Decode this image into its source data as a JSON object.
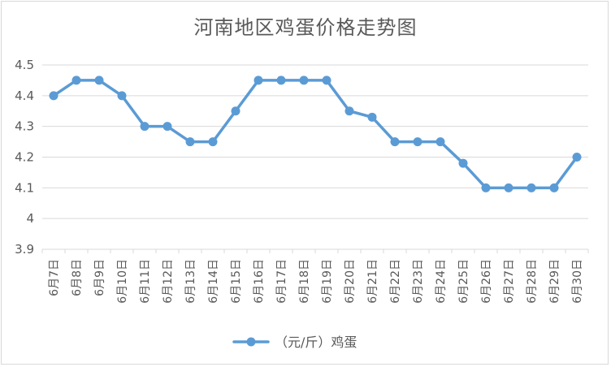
{
  "chart_data": {
    "type": "line",
    "title": "河南地区鸡蛋价格走势图",
    "categories": [
      "6月7日",
      "6月8日",
      "6月9日",
      "6月10日",
      "6月11日",
      "6月12日",
      "6月13日",
      "6月14日",
      "6月15日",
      "6月16日",
      "6月17日",
      "6月18日",
      "6月19日",
      "6月20日",
      "6月21日",
      "6月22日",
      "6月23日",
      "6月24日",
      "6月25日",
      "6月26日",
      "6月27日",
      "6月28日",
      "6月29日",
      "6月30日"
    ],
    "series": [
      {
        "name": "（元/斤）鸡蛋",
        "values": [
          4.4,
          4.45,
          4.45,
          4.4,
          4.3,
          4.3,
          4.25,
          4.25,
          4.35,
          4.45,
          4.45,
          4.45,
          4.45,
          4.35,
          4.33,
          4.25,
          4.25,
          4.25,
          4.18,
          4.1,
          4.1,
          4.1,
          4.1,
          4.2
        ]
      }
    ],
    "yticks": [
      "3.9",
      "4",
      "4.1",
      "4.2",
      "4.3",
      "4.4",
      "4.5"
    ],
    "ylim": [
      3.9,
      4.5
    ],
    "grid": true,
    "legend": "bottom",
    "colors": {
      "line": "#5b9bd5",
      "grid": "#d9d9d9",
      "text": "#595959"
    }
  }
}
